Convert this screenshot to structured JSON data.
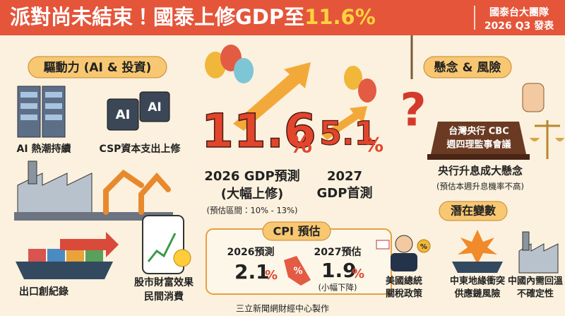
{
  "header": {
    "title": "派對尚未結束！國泰上修GDP至",
    "title_highlight": "11.6%",
    "source": [
      "國泰台大團隊",
      "2026 Q3 發表"
    ]
  },
  "drivers": {
    "heading": "驅動力 (AI & 投資)",
    "chip_labels": [
      "AI",
      "AI"
    ],
    "items": [
      {
        "lines": [
          "AI 熱潮持續"
        ]
      },
      {
        "lines": [
          "CSP資本支出上修"
        ]
      },
      {
        "lines": [
          "出口創紀錄"
        ]
      },
      {
        "lines": [
          "股市財富效果",
          "民間消費"
        ]
      }
    ]
  },
  "forecast": {
    "gdp_2026": {
      "value": 11.6,
      "unit": "%",
      "lines": [
        "2026 GDP預測",
        "(大幅上修)"
      ],
      "range": "(預估區間：10% - 13%)"
    },
    "gdp_2027": {
      "value": 5.1,
      "unit": "%",
      "lines": [
        "2027",
        "GDP首測"
      ]
    }
  },
  "cpi": {
    "heading": "CPI 預估",
    "tag": "%",
    "items": [
      {
        "label": "2026預測",
        "value": 2.1,
        "unit": "%"
      },
      {
        "label": "2027預估",
        "value": 1.9,
        "unit": "%",
        "note": "(小幅下降)"
      }
    ]
  },
  "risks": {
    "heading": "懸念 & 風險",
    "sign": [
      "台灣央行 CBC",
      "週四理監事會議"
    ],
    "main": "央行升息成大懸念",
    "note": "(預估本週升息機率不高)",
    "variables_heading": "潛在變數",
    "percent_badge": "%",
    "variables": [
      {
        "lines": [
          "美國總統",
          "關稅政策"
        ]
      },
      {
        "lines": [
          "中東地緣衝突",
          "供應鏈風險"
        ]
      },
      {
        "lines": [
          "中國內需回溫",
          "不確定性"
        ]
      }
    ]
  },
  "footer": "三立新聞網財經中心製作"
}
